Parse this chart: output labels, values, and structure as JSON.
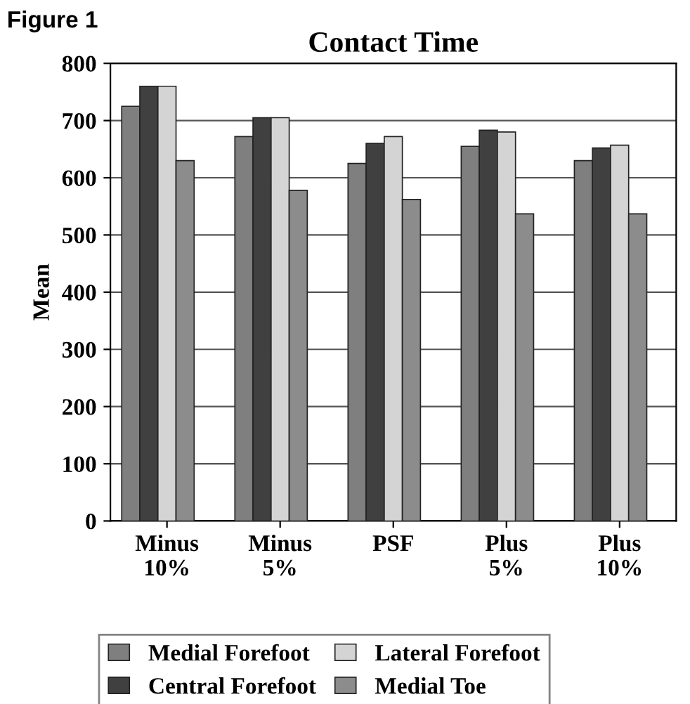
{
  "chart_data": {
    "type": "bar",
    "title": "Contact Time",
    "ylabel": "Mean",
    "annotations": [
      "Figure 1"
    ],
    "categories": [
      "Minus\n10%",
      "Minus\n5%",
      "PSF",
      "Plus\n5%",
      "Plus\n10%"
    ],
    "series": [
      {
        "name": "Medial Forefoot",
        "color": "#7f7f7f",
        "values": [
          725,
          672,
          625,
          655,
          630
        ]
      },
      {
        "name": "Central Forefoot",
        "color": "#404040",
        "values": [
          760,
          705,
          660,
          683,
          652
        ]
      },
      {
        "name": "Lateral Forefoot",
        "color": "#d4d4d4",
        "values": [
          760,
          705,
          672,
          680,
          657
        ]
      },
      {
        "name": "Medial Toe",
        "color": "#8c8c8c",
        "values": [
          630,
          578,
          562,
          537,
          537
        ]
      }
    ],
    "ylim": [
      0,
      800
    ],
    "yticks": [
      0,
      100,
      200,
      300,
      400,
      500,
      600,
      700,
      800
    ],
    "grid": "y",
    "legend": "bottom"
  }
}
